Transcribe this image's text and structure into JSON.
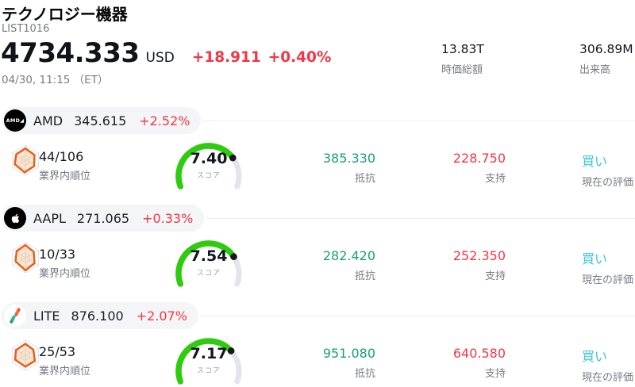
{
  "header": {
    "title": "テクノロジー機器",
    "subtitle": "LIST1016",
    "price": "4734.333",
    "currency": "USD",
    "change_abs": "+18.911",
    "change_pct": "+0.40%",
    "datetime": "04/30, 11:15 （ET）",
    "stats": [
      {
        "value": "13.83T",
        "label": "時価総額"
      },
      {
        "value": "306.89M",
        "label": "出来高"
      }
    ]
  },
  "labels": {
    "rank_label": "業界内順位",
    "score_label": "スコア",
    "resistance_label": "抵抗",
    "support_label": "支持",
    "rating_label": "現在の評価"
  },
  "colors": {
    "negative_red": "#f23645",
    "resistance_teal": "#18a078",
    "support_red": "#f23645",
    "rating_cyan": "#40c4d4",
    "gauge_green": "#2fcb0e",
    "gauge_track": "#e2e5ec",
    "pill_background": "#f4f5f7",
    "muted_gray": "#787b86"
  },
  "stocks": [
    {
      "symbol": "AMD",
      "price": "345.615",
      "change": "+2.52%",
      "icon": "amd-logo",
      "icon_text": "AMD◢",
      "rank": "44/106",
      "score": "7.40",
      "score_value": 7.4,
      "score_max": 10,
      "resistance": "385.330",
      "support": "228.750",
      "rating": "買い"
    },
    {
      "symbol": "AAPL",
      "price": "271.065",
      "change": "+0.33%",
      "icon": "apple-logo",
      "rank": "10/33",
      "score": "7.54",
      "score_value": 7.54,
      "score_max": 10,
      "resistance": "282.420",
      "support": "252.350",
      "rating": "買い"
    },
    {
      "symbol": "LITE",
      "price": "876.100",
      "change": "+2.07%",
      "icon": "lite-logo",
      "rank": "25/53",
      "score": "7.17",
      "score_value": 7.17,
      "score_max": 10,
      "resistance": "951.080",
      "support": "640.580",
      "rating": "買い"
    }
  ]
}
